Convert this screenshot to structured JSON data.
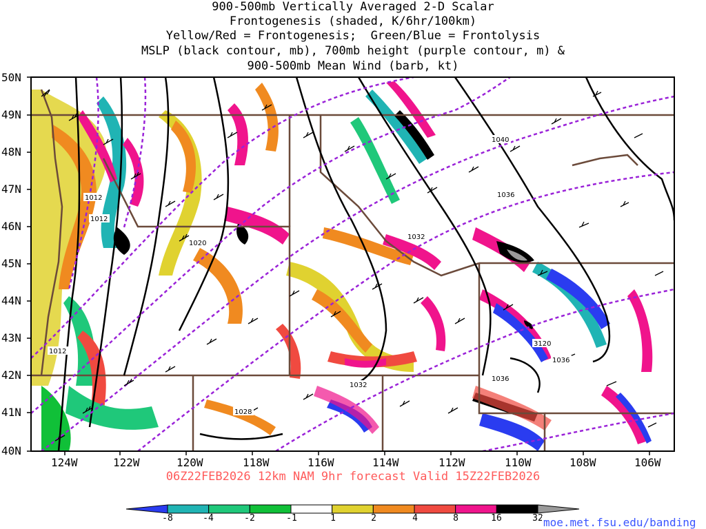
{
  "title_lines": [
    "900-500mb Vertically Averaged 2-D Scalar",
    "Frontogenesis (shaded, K/6hr/100km)",
    "Yellow/Red = Frontogenesis;  Green/Blue = Frontolysis",
    "MSLP (black contour, mb), 700mb height (purple contour, m) &",
    "900-500mb Mean Wind (barb, kt)"
  ],
  "lat_labels": [
    "50N",
    "49N",
    "48N",
    "47N",
    "46N",
    "45N",
    "44N",
    "43N",
    "42N",
    "41N",
    "40N"
  ],
  "lon_labels": [
    "124W",
    "122W",
    "120W",
    "118W",
    "116W",
    "114W",
    "112W",
    "110W",
    "108W",
    "106W"
  ],
  "contour_labels": [
    "1040",
    "1036",
    "1032",
    "1020",
    "1012",
    "1012",
    "1012",
    "3120",
    "1036",
    "1036",
    "1032",
    "1028"
  ],
  "forecast_text": "06Z22FEB2026 12km NAM 9hr forecast Valid 15Z22FEB2026",
  "colorbar": {
    "labels": [
      "-8",
      "-4",
      "-2",
      "-1",
      "1",
      "2",
      "4",
      "8",
      "16",
      "32"
    ],
    "colors": [
      "#2a3cf0",
      "#20b4b4",
      "#1fc87a",
      "#10c038",
      "#ffffff",
      "#e0d230",
      "#f08a20",
      "#f04a40",
      "#f0148c",
      "#000000",
      "#9a9a9a"
    ]
  },
  "credit": "moe.met.fsu.edu/banding"
}
